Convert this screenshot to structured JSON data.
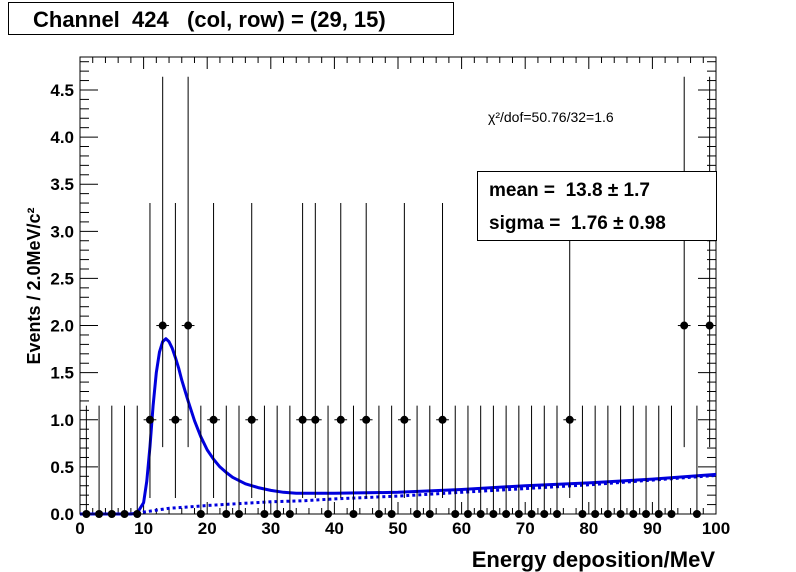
{
  "title": "Channel  424   (col, row) = (29, 15)",
  "chi2_label": "χ²/dof=50.76/32=1.6",
  "stats": {
    "mean": "mean =  13.8 ± 1.7",
    "sigma": "sigma =  1.76 ± 0.98"
  },
  "chart_data": {
    "type": "scatter",
    "title": "Channel  424   (col, row) = (29, 15)",
    "xlabel": "Energy deposition/MeV",
    "ylabel": "Events / 2.0MeV/c²",
    "xlim": [
      0,
      100
    ],
    "ylim": [
      0,
      4.85
    ],
    "x_ticks": [
      0,
      10,
      20,
      30,
      40,
      50,
      60,
      70,
      80,
      90,
      100
    ],
    "y_ticks": [
      0,
      0.5,
      1,
      1.5,
      2,
      2.5,
      3,
      3.5,
      4,
      4.5
    ],
    "y_tick_labels": [
      "0.0",
      "0.5",
      "1.0",
      "1.5",
      "2.0",
      "2.5",
      "3.0",
      "3.5",
      "4.0",
      "4.5"
    ],
    "bin_width": 2,
    "series": [
      {
        "kind": "data_points_with_errors",
        "x": [
          1,
          3,
          5,
          7,
          9,
          11,
          13,
          15,
          17,
          19,
          21,
          23,
          25,
          27,
          29,
          31,
          33,
          35,
          37,
          39,
          41,
          43,
          45,
          47,
          49,
          51,
          53,
          55,
          57,
          59,
          61,
          63,
          65,
          67,
          69,
          71,
          73,
          75,
          77,
          79,
          81,
          83,
          85,
          87,
          89,
          91,
          93,
          95,
          97,
          99
        ],
        "y": [
          0,
          0,
          0,
          0,
          0,
          1,
          2,
          1,
          2,
          0,
          1,
          0,
          0,
          1,
          0,
          0,
          0,
          1,
          1,
          0,
          1,
          0,
          1,
          0,
          0,
          1,
          0,
          0,
          1,
          0,
          0,
          0,
          0,
          0,
          0,
          0,
          0,
          0,
          1,
          0,
          0,
          0,
          0,
          0,
          0,
          0,
          0,
          2,
          0,
          2
        ],
        "err_low": [
          0,
          0,
          0,
          0,
          0,
          0.83,
          1.29,
          0.83,
          1.29,
          0,
          0.83,
          0,
          0,
          0.83,
          0,
          0,
          0,
          0.83,
          0.83,
          0,
          0.83,
          0,
          0.83,
          0,
          0,
          0.83,
          0,
          0,
          0.83,
          0,
          0,
          0,
          0,
          0,
          0,
          0,
          0,
          0,
          0.83,
          0,
          0,
          0,
          0,
          0,
          0,
          0,
          0,
          1.29,
          0,
          1.29
        ],
        "err_high": [
          1.15,
          1.15,
          1.15,
          1.15,
          1.15,
          2.3,
          2.64,
          2.3,
          2.64,
          1.15,
          2.3,
          1.15,
          1.15,
          2.3,
          1.15,
          1.15,
          1.15,
          2.3,
          2.3,
          1.15,
          2.3,
          1.15,
          2.3,
          1.15,
          1.15,
          2.3,
          1.15,
          1.15,
          2.3,
          1.15,
          1.15,
          1.15,
          1.15,
          1.15,
          1.15,
          1.15,
          1.15,
          1.15,
          2.3,
          1.15,
          1.15,
          1.15,
          1.15,
          1.15,
          1.15,
          1.15,
          1.15,
          2.64,
          1.15,
          2.64
        ]
      },
      {
        "kind": "fit_total",
        "color": "#0000dd",
        "x": [
          0,
          8,
          9,
          10,
          10.5,
          11,
          11.5,
          12,
          12.5,
          13,
          13.5,
          14,
          14.5,
          15,
          15.5,
          16,
          17,
          18,
          19,
          20,
          21,
          22,
          23,
          24,
          26,
          28,
          30,
          32,
          34,
          36,
          40,
          50,
          60,
          70,
          80,
          90,
          100
        ],
        "y": [
          0,
          0,
          0.01,
          0.12,
          0.35,
          0.72,
          1.15,
          1.5,
          1.72,
          1.83,
          1.86,
          1.83,
          1.76,
          1.66,
          1.55,
          1.42,
          1.2,
          0.99,
          0.82,
          0.68,
          0.58,
          0.5,
          0.44,
          0.39,
          0.32,
          0.28,
          0.25,
          0.23,
          0.22,
          0.22,
          0.22,
          0.23,
          0.26,
          0.3,
          0.33,
          0.37,
          0.42
        ]
      },
      {
        "kind": "fit_background",
        "color": "#0000dd",
        "x": [
          9,
          10,
          12,
          14,
          16,
          18,
          20,
          25,
          30,
          35,
          40,
          50,
          60,
          70,
          80,
          90,
          100
        ],
        "y": [
          0,
          0.02,
          0.04,
          0.06,
          0.07,
          0.08,
          0.09,
          0.11,
          0.13,
          0.14,
          0.16,
          0.19,
          0.23,
          0.27,
          0.31,
          0.36,
          0.41
        ]
      }
    ]
  }
}
